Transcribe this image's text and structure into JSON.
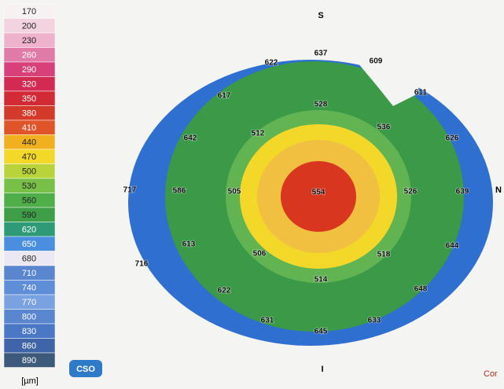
{
  "scale": {
    "values": [
      170,
      200,
      230,
      260,
      290,
      320,
      350,
      380,
      410,
      440,
      470,
      500,
      530,
      560,
      590,
      620,
      650,
      680,
      710,
      740,
      770,
      800,
      830,
      860,
      890
    ],
    "colors": [
      "#f6f1f3",
      "#f3d3e0",
      "#eeb2cc",
      "#e07aa6",
      "#d8407a",
      "#d22a52",
      "#d22a36",
      "#d43a2a",
      "#e0542a",
      "#f0b020",
      "#f3d82a",
      "#b8d43a",
      "#78c048",
      "#4fae4a",
      "#3f9e48",
      "#2f9a78",
      "#4a8ee0",
      "#ece8f2",
      "#5a86d0",
      "#5f8ed8",
      "#7aa2e0",
      "#5a86d0",
      "#4a78c4",
      "#3f64a8",
      "#3e5a7a"
    ],
    "unit": "[µm]"
  },
  "compass": {
    "top": "S",
    "right": "N",
    "bottom": "I"
  },
  "logo": "CSO",
  "footer": "Cor",
  "map": {
    "labels": [
      "622",
      "637",
      "609",
      "611",
      "617",
      "528",
      "536",
      "512",
      "642",
      "626",
      "717",
      "586",
      "505",
      "554",
      "526",
      "639",
      "613",
      "506",
      "518",
      "644",
      "716",
      "514",
      "622",
      "648",
      "631",
      "645",
      "633"
    ]
  }
}
